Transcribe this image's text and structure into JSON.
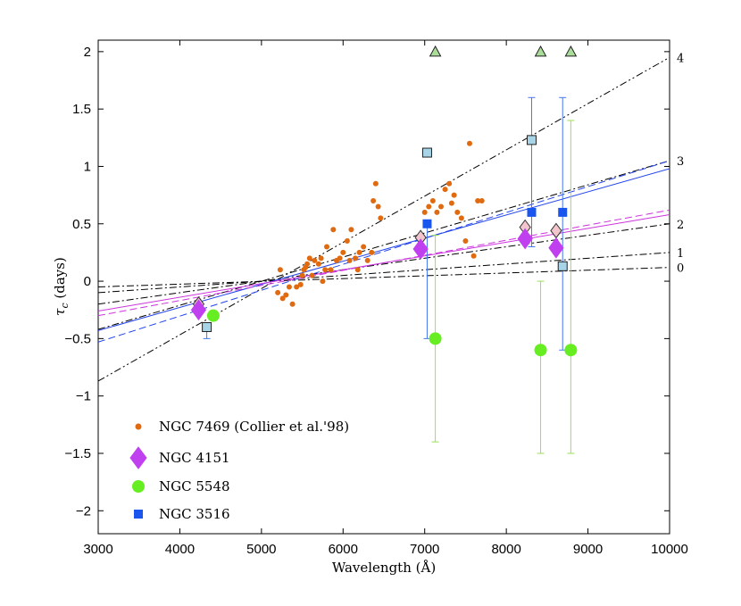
{
  "chart_data": {
    "type": "scatter",
    "title": "",
    "xlabel": "Wavelength (Å)",
    "ylabel": "τ_c (days)",
    "xlim": [
      3000,
      10000
    ],
    "ylim": [
      -2.2,
      2.1
    ],
    "xticks": [
      3000,
      4000,
      5000,
      6000,
      7000,
      8000,
      9000,
      10000
    ],
    "yticks": [
      -2,
      -1.5,
      -1,
      -0.5,
      0,
      0.5,
      1,
      1.5,
      2
    ],
    "ytick_labels": [
      "−2",
      "−1.5",
      "−1",
      "−0.5",
      "0",
      "0.5",
      "1",
      "1.5",
      "2"
    ],
    "legend_position": "bottom-left",
    "series": [
      {
        "name": "NGC 7469 (Collier et al.'98)",
        "marker": "small-dot",
        "color": "#e06a10",
        "points": [
          [
            5200,
            -0.1
          ],
          [
            5230,
            0.1
          ],
          [
            5260,
            -0.15
          ],
          [
            5300,
            -0.12
          ],
          [
            5340,
            -0.05
          ],
          [
            5380,
            -0.2
          ],
          [
            5430,
            -0.05
          ],
          [
            5480,
            -0.03
          ],
          [
            5500,
            0.05
          ],
          [
            5520,
            0.1
          ],
          [
            5540,
            0.12
          ],
          [
            5560,
            0.15
          ],
          [
            5590,
            0.2
          ],
          [
            5620,
            0.05
          ],
          [
            5650,
            0.18
          ],
          [
            5700,
            0.15
          ],
          [
            5730,
            0.2
          ],
          [
            5750,
            0.0
          ],
          [
            5780,
            0.1
          ],
          [
            5800,
            0.3
          ],
          [
            5850,
            0.1
          ],
          [
            5880,
            0.45
          ],
          [
            5920,
            0.18
          ],
          [
            5960,
            0.2
          ],
          [
            6000,
            0.25
          ],
          [
            6050,
            0.35
          ],
          [
            6080,
            0.18
          ],
          [
            6100,
            0.45
          ],
          [
            6150,
            0.2
          ],
          [
            6180,
            0.1
          ],
          [
            6200,
            0.25
          ],
          [
            6250,
            0.3
          ],
          [
            6300,
            0.18
          ],
          [
            6350,
            0.25
          ],
          [
            6370,
            0.7
          ],
          [
            6400,
            0.85
          ],
          [
            6430,
            0.65
          ],
          [
            6460,
            0.55
          ],
          [
            7000,
            0.6
          ],
          [
            7050,
            0.65
          ],
          [
            7100,
            0.7
          ],
          [
            7150,
            0.6
          ],
          [
            7200,
            0.65
          ],
          [
            7250,
            0.8
          ],
          [
            7300,
            0.85
          ],
          [
            7330,
            0.68
          ],
          [
            7360,
            0.75
          ],
          [
            7400,
            0.6
          ],
          [
            7450,
            0.55
          ],
          [
            7500,
            0.35
          ],
          [
            7550,
            1.2
          ],
          [
            7600,
            0.22
          ],
          [
            7650,
            0.7
          ],
          [
            7700,
            0.7
          ]
        ]
      },
      {
        "name": "NGC 4151",
        "marker": "diamond",
        "color": "#c040f0",
        "open_color": "#f2c6cc",
        "points": [
          [
            4230,
            -0.25
          ],
          [
            6950,
            0.28
          ],
          [
            8230,
            0.37
          ],
          [
            8610,
            0.29
          ]
        ],
        "open_points": [
          [
            4230,
            -0.2
          ],
          [
            6950,
            0.38
          ],
          [
            8230,
            0.47
          ],
          [
            8610,
            0.44
          ]
        ]
      },
      {
        "name": "NGC 5548",
        "marker": "circle",
        "color": "#66ee22",
        "points": [
          [
            4410,
            -0.3
          ],
          [
            7130,
            -0.5
          ],
          [
            8420,
            -0.6
          ],
          [
            8790,
            -0.6
          ]
        ],
        "errors": [
          [
            7130,
            -1.4,
            0.4
          ],
          [
            8420,
            -1.5,
            0.0
          ],
          [
            8790,
            -1.5,
            1.4
          ]
        ],
        "triangles": [
          [
            7130,
            2.0
          ],
          [
            8420,
            2.0
          ],
          [
            8790,
            2.0
          ]
        ],
        "triangle_color": "#aadd99"
      },
      {
        "name": "NGC 3516",
        "marker": "square",
        "color": "#1a55ee",
        "open_color": "#a8d4e8",
        "points": [
          [
            7030,
            0.5
          ],
          [
            8310,
            0.6
          ],
          [
            8690,
            0.6
          ]
        ],
        "errors": [
          [
            7030,
            -0.5,
            0.5
          ],
          [
            8310,
            0.3,
            1.6
          ],
          [
            8690,
            -0.6,
            1.6
          ]
        ],
        "open_points": [
          [
            4330,
            -0.4
          ],
          [
            7030,
            1.12
          ],
          [
            8310,
            1.23
          ],
          [
            8690,
            0.13
          ]
        ],
        "open_errors": [
          [
            4330,
            -0.5,
            -0.4
          ]
        ]
      }
    ],
    "model_lines": [
      {
        "label": "0",
        "style": "dashdot",
        "color": "#000000",
        "points": [
          [
            3000,
            -0.05
          ],
          [
            10000,
            0.12
          ]
        ]
      },
      {
        "label": "1",
        "style": "dashdot",
        "color": "#000000",
        "points": [
          [
            3000,
            -0.1
          ],
          [
            10000,
            0.25
          ]
        ]
      },
      {
        "label": "2",
        "style": "dashdot",
        "color": "#000000",
        "points": [
          [
            3000,
            -0.2
          ],
          [
            10000,
            0.5
          ]
        ]
      },
      {
        "label": "3",
        "style": "dashdot",
        "color": "#000000",
        "points": [
          [
            3000,
            -0.42
          ],
          [
            10000,
            1.05
          ]
        ]
      },
      {
        "label": "4",
        "style": "dashdotdot",
        "color": "#000000",
        "points": [
          [
            3000,
            -0.87
          ],
          [
            10000,
            1.95
          ]
        ]
      },
      {
        "label": "",
        "style": "solid",
        "color": "#2244ee",
        "points": [
          [
            3000,
            -0.43
          ],
          [
            10000,
            0.98
          ]
        ]
      },
      {
        "label": "",
        "style": "dashed",
        "color": "#2244ee",
        "points": [
          [
            3000,
            -0.53
          ],
          [
            10000,
            1.05
          ]
        ]
      },
      {
        "label": "",
        "style": "solid",
        "color": "#cc33dd",
        "points": [
          [
            3000,
            -0.26
          ],
          [
            10000,
            0.58
          ]
        ]
      },
      {
        "label": "",
        "style": "dashed",
        "color": "#cc33dd",
        "points": [
          [
            3000,
            -0.3
          ],
          [
            10000,
            0.62
          ]
        ]
      }
    ]
  }
}
